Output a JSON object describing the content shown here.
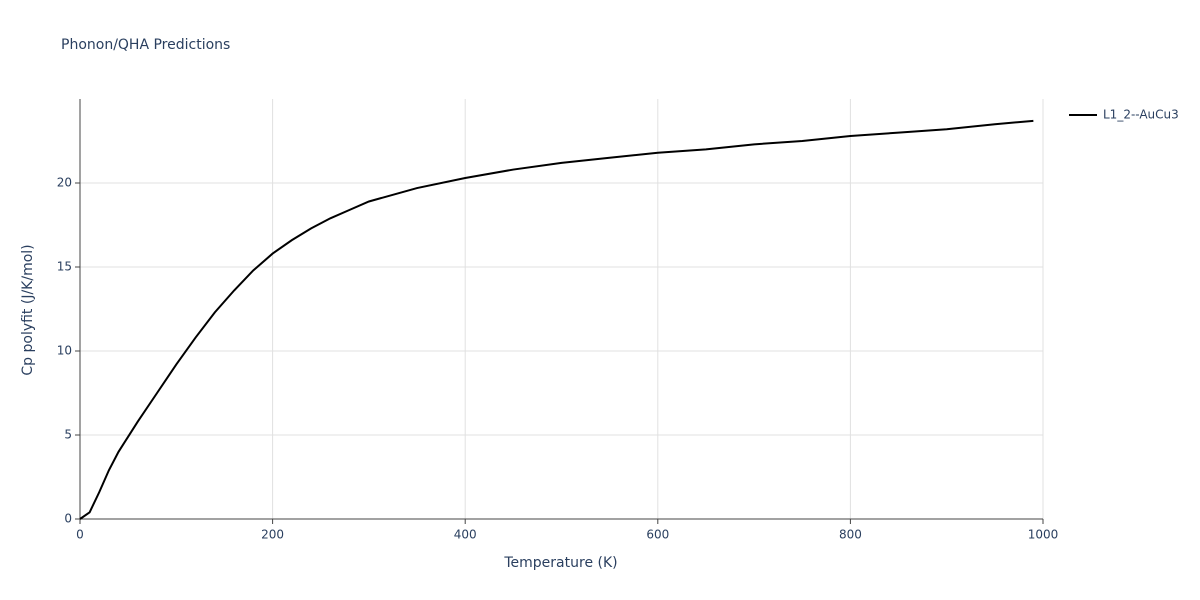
{
  "chart_data": {
    "type": "line",
    "title": "Phonon/QHA Predictions",
    "x_label": "Temperature (K)",
    "y_label": "Cp polyfit (J/K/mol)",
    "x": [
      0,
      10,
      20,
      30,
      40,
      50,
      60,
      80,
      100,
      120,
      140,
      160,
      180,
      200,
      220,
      240,
      260,
      280,
      300,
      350,
      400,
      450,
      500,
      550,
      600,
      650,
      700,
      750,
      800,
      850,
      900,
      950,
      990
    ],
    "series": [
      {
        "name": "L1_2--AuCu3",
        "color": "#000000",
        "values": [
          0,
          0.4,
          1.6,
          2.9,
          4.0,
          4.9,
          5.8,
          7.5,
          9.2,
          10.8,
          12.3,
          13.6,
          14.8,
          15.8,
          16.6,
          17.3,
          17.9,
          18.4,
          18.9,
          19.7,
          20.3,
          20.8,
          21.2,
          21.5,
          21.8,
          22.0,
          22.3,
          22.5,
          22.8,
          23.0,
          23.2,
          23.5,
          23.7
        ]
      }
    ],
    "xlim": [
      0,
      1000
    ],
    "xticks": [
      0,
      200,
      400,
      600,
      800,
      1000
    ],
    "ylim": [
      0,
      25
    ],
    "yticks": [
      0,
      5,
      10,
      15,
      20
    ],
    "grid": true
  }
}
